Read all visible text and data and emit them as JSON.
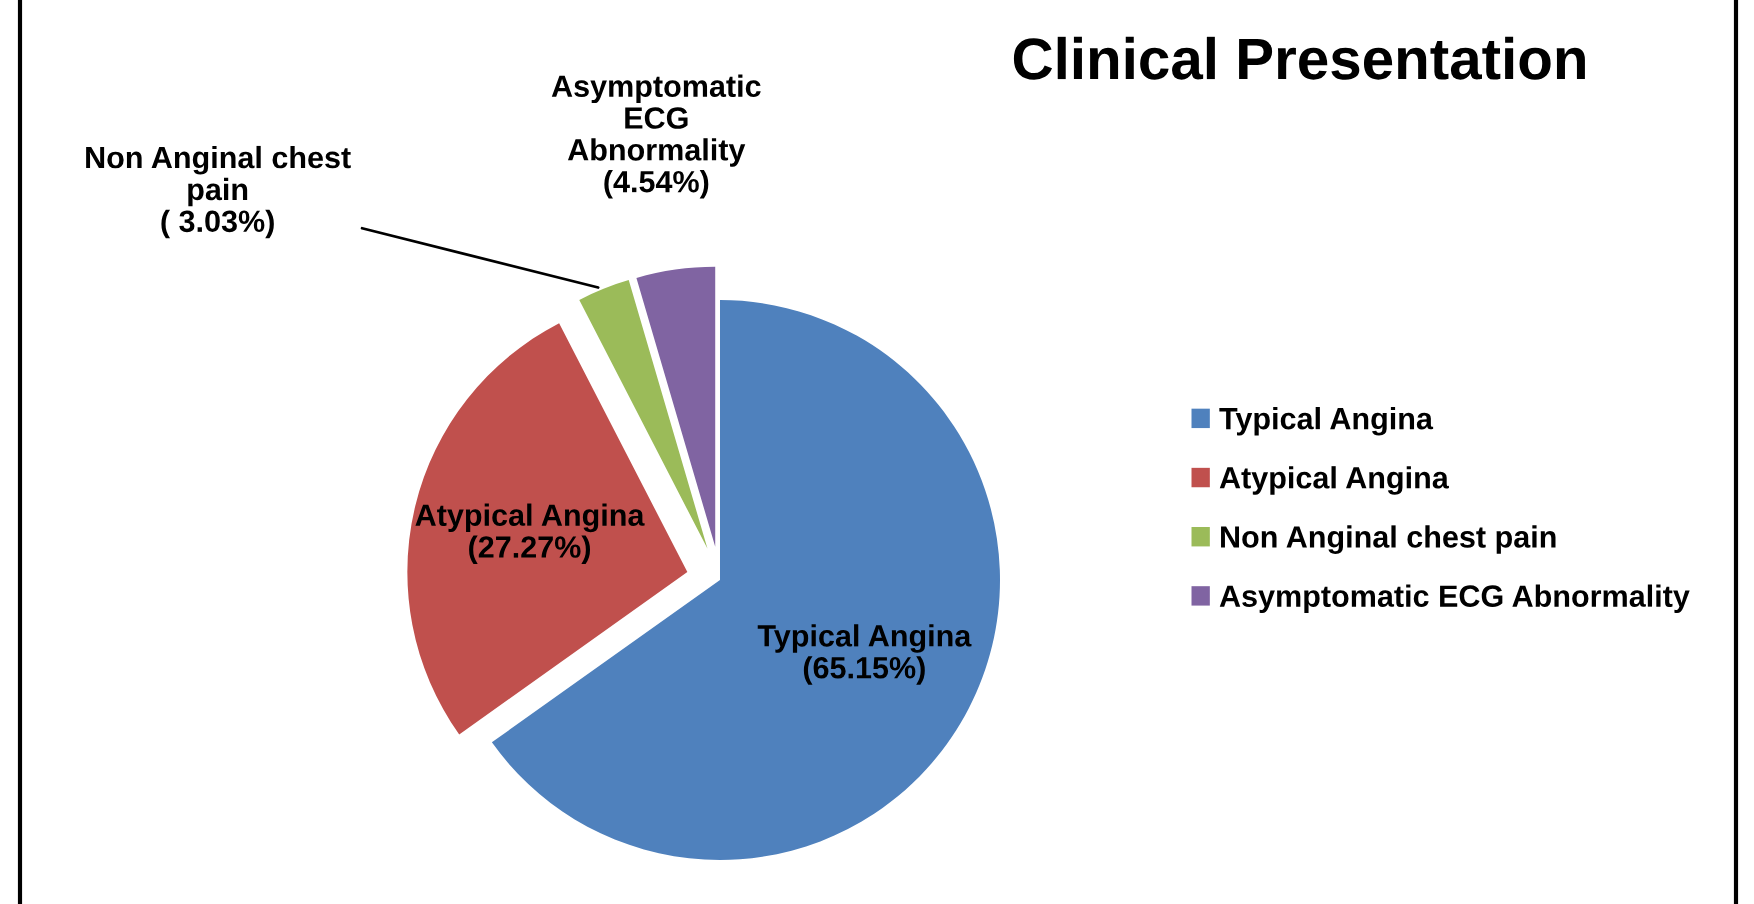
{
  "chart_data": {
    "type": "pie",
    "title": "Clinical Presentation",
    "categories": [
      "Typical Angina",
      "Atypical Angina",
      "Non Anginal chest pain",
      "Asymptomatic ECG Abnormality"
    ],
    "values": [
      65.15,
      27.27,
      3.03,
      4.54
    ],
    "colors": [
      "#4f81bd",
      "#c0504d",
      "#9bbb59",
      "#8064a2"
    ],
    "value_labels": [
      "Typical Angina\n(65.15%)",
      "Atypical Angina\n(27.27%)",
      "Non Anginal chest\npain\n( 3.03%)",
      "Asymptomatic\nECG\nAbnormality\n(4.54%)"
    ],
    "legend": "right"
  }
}
